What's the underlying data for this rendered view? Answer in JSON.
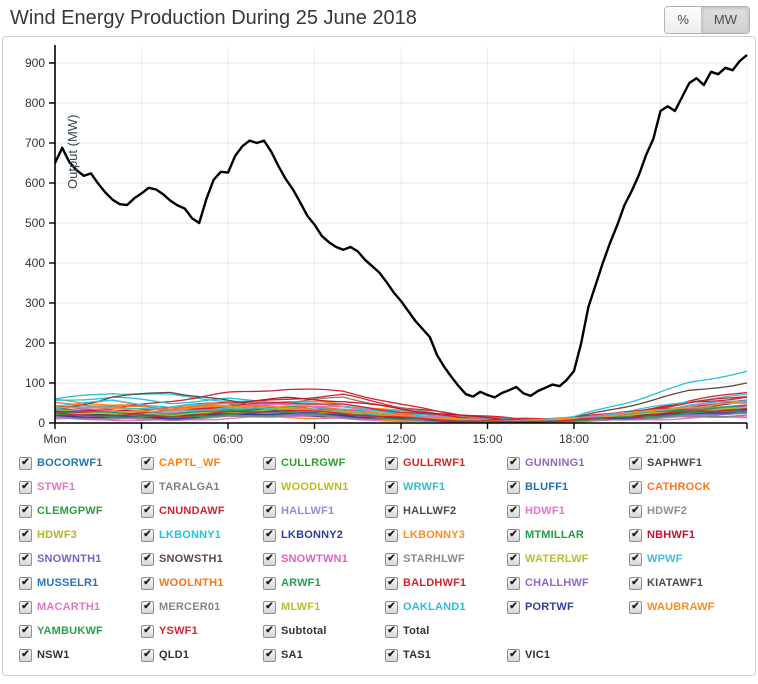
{
  "header": {
    "title": "Wind Energy Production During 25 June 2018",
    "unit_toggle": {
      "percent_label": "%",
      "mw_label": "MW",
      "active": "MW"
    }
  },
  "legend": {
    "checkbox_glyph": "✔",
    "all_checked": true,
    "summary_color": "#333333",
    "summary_items": [
      "Subtotal",
      "Total"
    ],
    "region_items": [
      "NSW1",
      "QLD1",
      "SA1",
      "TAS1",
      "VIC1"
    ]
  },
  "chart_data": {
    "type": "line",
    "title": "Wind Energy Production During 25 June 2018",
    "xlabel": "",
    "ylabel": "Output (MW)",
    "ylim": [
      0,
      940
    ],
    "xlim_hours": [
      0,
      24
    ],
    "grid": true,
    "y_ticks": [
      0,
      100,
      200,
      300,
      400,
      500,
      600,
      700,
      800,
      900
    ],
    "x_ticks": [
      {
        "t": 0,
        "label": "Mon"
      },
      {
        "t": 3,
        "label": "03:00"
      },
      {
        "t": 6,
        "label": "06:00"
      },
      {
        "t": 9,
        "label": "09:00"
      },
      {
        "t": 12,
        "label": "12:00"
      },
      {
        "t": 15,
        "label": "15:00"
      },
      {
        "t": 18,
        "label": "18:00"
      },
      {
        "t": 21,
        "label": "21:00"
      },
      {
        "t": 24,
        "label": ""
      }
    ],
    "total": {
      "name": "Total",
      "color": "#000000",
      "x_step_hours": 0.25,
      "values": [
        650,
        688,
        652,
        632,
        618,
        624,
        598,
        576,
        558,
        547,
        545,
        562,
        574,
        588,
        584,
        572,
        556,
        544,
        536,
        512,
        500,
        560,
        608,
        628,
        626,
        668,
        692,
        706,
        700,
        706,
        678,
        642,
        610,
        584,
        552,
        518,
        496,
        468,
        452,
        440,
        433,
        440,
        429,
        408,
        392,
        376,
        352,
        326,
        305,
        280,
        255,
        235,
        215,
        170,
        140,
        115,
        92,
        72,
        66,
        78,
        70,
        64,
        75,
        82,
        90,
        74,
        68,
        80,
        88,
        96,
        92,
        108,
        130,
        200,
        290,
        345,
        400,
        450,
        495,
        545,
        580,
        620,
        670,
        710,
        780,
        792,
        780,
        815,
        850,
        862,
        845,
        878,
        872,
        888,
        882,
        905,
        920
      ]
    },
    "farm_x_hours": [
      0,
      2,
      4,
      6,
      8,
      10,
      12,
      14,
      16,
      18,
      20,
      22,
      24
    ],
    "farms": [
      {
        "name": "BOCORWF1",
        "color": "#1f77b4",
        "values": [
          30,
          25,
          20,
          28,
          35,
          30,
          18,
          8,
          5,
          10,
          22,
          30,
          35
        ]
      },
      {
        "name": "CAPTL_WF",
        "color": "#ff7f0e",
        "values": [
          58,
          45,
          40,
          50,
          55,
          48,
          30,
          15,
          8,
          12,
          20,
          35,
          45
        ]
      },
      {
        "name": "CULLRGWF",
        "color": "#2ca02c",
        "values": [
          15,
          18,
          12,
          20,
          25,
          22,
          10,
          5,
          3,
          6,
          12,
          18,
          22
        ]
      },
      {
        "name": "GULLRWF1",
        "color": "#d62728",
        "values": [
          25,
          20,
          30,
          45,
          60,
          70,
          40,
          20,
          10,
          8,
          25,
          55,
          78
        ]
      },
      {
        "name": "GUNNING1",
        "color": "#9467bd",
        "values": [
          12,
          10,
          8,
          15,
          18,
          12,
          6,
          4,
          2,
          5,
          10,
          14,
          18
        ]
      },
      {
        "name": "SAPHWF1",
        "color": "#4a4550",
        "values": [
          20,
          22,
          18,
          25,
          30,
          28,
          15,
          8,
          5,
          10,
          18,
          25,
          30
        ]
      },
      {
        "name": "STWF1",
        "color": "#e377c2",
        "values": [
          10,
          8,
          6,
          12,
          15,
          10,
          5,
          3,
          2,
          4,
          8,
          12,
          15
        ]
      },
      {
        "name": "TARALGA1",
        "color": "#7f7f7f",
        "values": [
          35,
          30,
          25,
          40,
          50,
          65,
          35,
          18,
          8,
          6,
          15,
          30,
          45
        ]
      },
      {
        "name": "WOODLWN1",
        "color": "#bcbd22",
        "values": [
          18,
          15,
          12,
          20,
          24,
          18,
          8,
          4,
          3,
          6,
          14,
          20,
          24
        ]
      },
      {
        "name": "WRWF1",
        "color": "#2bbfd6",
        "values": [
          60,
          75,
          70,
          55,
          48,
          40,
          25,
          12,
          6,
          10,
          20,
          30,
          40
        ]
      },
      {
        "name": "BLUFF1",
        "color": "#1c6fba",
        "values": [
          22,
          18,
          15,
          25,
          30,
          24,
          12,
          6,
          4,
          8,
          16,
          24,
          28
        ]
      },
      {
        "name": "CATHROCK",
        "color": "#ff7518",
        "values": [
          40,
          55,
          35,
          45,
          38,
          30,
          18,
          10,
          5,
          8,
          18,
          28,
          35
        ]
      },
      {
        "name": "CLEMGPWF",
        "color": "#2a9d3f",
        "values": [
          28,
          22,
          30,
          35,
          40,
          32,
          20,
          10,
          5,
          8,
          18,
          28,
          35
        ]
      },
      {
        "name": "CNUNDAWF",
        "color": "#d62231",
        "values": [
          40,
          35,
          55,
          75,
          85,
          80,
          45,
          22,
          10,
          12,
          30,
          50,
          65
        ]
      },
      {
        "name": "HALLWF1",
        "color": "#a287d5",
        "values": [
          15,
          12,
          10,
          18,
          22,
          16,
          8,
          4,
          3,
          6,
          12,
          18,
          22
        ]
      },
      {
        "name": "HALLWF2",
        "color": "#4d4a54",
        "values": [
          25,
          20,
          18,
          28,
          34,
          26,
          14,
          7,
          4,
          8,
          18,
          26,
          32
        ]
      },
      {
        "name": "HDWF1",
        "color": "#ef6fd0",
        "values": [
          12,
          10,
          8,
          14,
          18,
          12,
          6,
          3,
          2,
          4,
          10,
          15,
          18
        ]
      },
      {
        "name": "HDWF2",
        "color": "#8f8f97",
        "values": [
          20,
          16,
          14,
          22,
          28,
          20,
          10,
          5,
          3,
          6,
          14,
          22,
          26
        ]
      },
      {
        "name": "HDWF3",
        "color": "#b4b425",
        "values": [
          30,
          24,
          20,
          32,
          38,
          30,
          16,
          8,
          4,
          8,
          20,
          30,
          36
        ]
      },
      {
        "name": "LKBONNY1",
        "color": "#24c2dd",
        "values": [
          55,
          65,
          50,
          60,
          52,
          42,
          28,
          14,
          7,
          15,
          55,
          100,
          130
        ]
      },
      {
        "name": "LKBONNY2",
        "color": "#2b3f9e",
        "values": [
          20,
          25,
          18,
          24,
          20,
          16,
          10,
          5,
          3,
          6,
          20,
          38,
          50
        ]
      },
      {
        "name": "LKBONNY3",
        "color": "#ff8c21",
        "values": [
          15,
          18,
          14,
          18,
          15,
          12,
          8,
          4,
          2,
          5,
          15,
          28,
          38
        ]
      },
      {
        "name": "MTMILLAR",
        "color": "#1e9e46",
        "values": [
          25,
          20,
          16,
          26,
          32,
          25,
          13,
          6,
          4,
          8,
          18,
          28,
          34
        ]
      },
      {
        "name": "NBHWF1",
        "color": "#c3122f",
        "values": [
          35,
          28,
          40,
          52,
          62,
          55,
          35,
          18,
          8,
          10,
          25,
          42,
          55
        ]
      },
      {
        "name": "SNOWNTH1",
        "color": "#7a5fc9",
        "values": [
          30,
          26,
          22,
          34,
          40,
          32,
          18,
          9,
          5,
          10,
          22,
          34,
          42
        ]
      },
      {
        "name": "SNOWSTH1",
        "color": "#5d4b42",
        "values": [
          30,
          65,
          78,
          55,
          30,
          22,
          12,
          6,
          4,
          12,
          45,
          80,
          100
        ]
      },
      {
        "name": "SNOWTWN1",
        "color": "#e25fc0",
        "values": [
          18,
          14,
          12,
          20,
          24,
          18,
          10,
          5,
          3,
          6,
          14,
          22,
          28
        ]
      },
      {
        "name": "STARHLWF",
        "color": "#8a8a92",
        "values": [
          28,
          24,
          20,
          30,
          36,
          28,
          15,
          8,
          4,
          8,
          20,
          30,
          38
        ]
      },
      {
        "name": "WATERLWF",
        "color": "#b8bf2c",
        "values": [
          32,
          26,
          22,
          34,
          42,
          34,
          18,
          9,
          5,
          10,
          24,
          38,
          46
        ]
      },
      {
        "name": "WPWF",
        "color": "#38c3de",
        "values": [
          45,
          55,
          40,
          50,
          44,
          36,
          22,
          11,
          6,
          12,
          30,
          55,
          70
        ]
      },
      {
        "name": "MUSSELR1",
        "color": "#2474bd",
        "values": [
          24,
          20,
          16,
          26,
          32,
          24,
          13,
          7,
          4,
          8,
          18,
          28,
          34
        ]
      },
      {
        "name": "WOOLNTH1",
        "color": "#f9731c",
        "values": [
          50,
          42,
          36,
          48,
          42,
          34,
          20,
          10,
          5,
          9,
          22,
          36,
          46
        ]
      },
      {
        "name": "ARWF1",
        "color": "#269e52",
        "values": [
          30,
          25,
          20,
          32,
          40,
          30,
          16,
          8,
          4,
          9,
          22,
          34,
          42
        ]
      },
      {
        "name": "BALDHWF1",
        "color": "#d2242e",
        "values": [
          28,
          22,
          30,
          42,
          52,
          45,
          28,
          14,
          7,
          10,
          28,
          50,
          68
        ]
      },
      {
        "name": "CHALLHWF",
        "color": "#9065cf",
        "values": [
          16,
          13,
          11,
          18,
          22,
          16,
          9,
          4,
          2,
          5,
          12,
          20,
          26
        ]
      },
      {
        "name": "KIATAWF1",
        "color": "#4e4956",
        "values": [
          22,
          18,
          15,
          24,
          30,
          22,
          12,
          6,
          3,
          7,
          16,
          26,
          32
        ]
      },
      {
        "name": "MACARTH1",
        "color": "#e873c8",
        "values": [
          38,
          32,
          26,
          40,
          48,
          38,
          20,
          10,
          5,
          11,
          26,
          42,
          52
        ]
      },
      {
        "name": "MERCER01",
        "color": "#85858d",
        "values": [
          14,
          11,
          9,
          15,
          19,
          14,
          7,
          3,
          2,
          4,
          10,
          16,
          20
        ]
      },
      {
        "name": "MLWF1",
        "color": "#bcbd29",
        "values": [
          26,
          21,
          18,
          28,
          34,
          26,
          14,
          7,
          4,
          8,
          19,
          30,
          37
        ]
      },
      {
        "name": "OAKLAND1",
        "color": "#29bedc",
        "values": [
          35,
          42,
          30,
          38,
          33,
          27,
          16,
          8,
          4,
          9,
          24,
          44,
          58
        ]
      },
      {
        "name": "PORTWF",
        "color": "#2c3f9c",
        "values": [
          18,
          15,
          12,
          20,
          25,
          19,
          10,
          5,
          3,
          6,
          15,
          24,
          30
        ]
      },
      {
        "name": "WAUBRAWF",
        "color": "#fb8d20",
        "values": [
          42,
          35,
          30,
          44,
          38,
          30,
          18,
          9,
          5,
          10,
          24,
          40,
          52
        ]
      },
      {
        "name": "YAMBUKWF",
        "color": "#27a04e",
        "values": [
          20,
          17,
          14,
          22,
          28,
          21,
          11,
          5,
          3,
          6,
          15,
          24,
          30
        ]
      },
      {
        "name": "YSWF1",
        "color": "#d42430",
        "values": [
          24,
          19,
          16,
          26,
          32,
          24,
          13,
          6,
          3,
          7,
          17,
          28,
          36
        ]
      }
    ]
  }
}
